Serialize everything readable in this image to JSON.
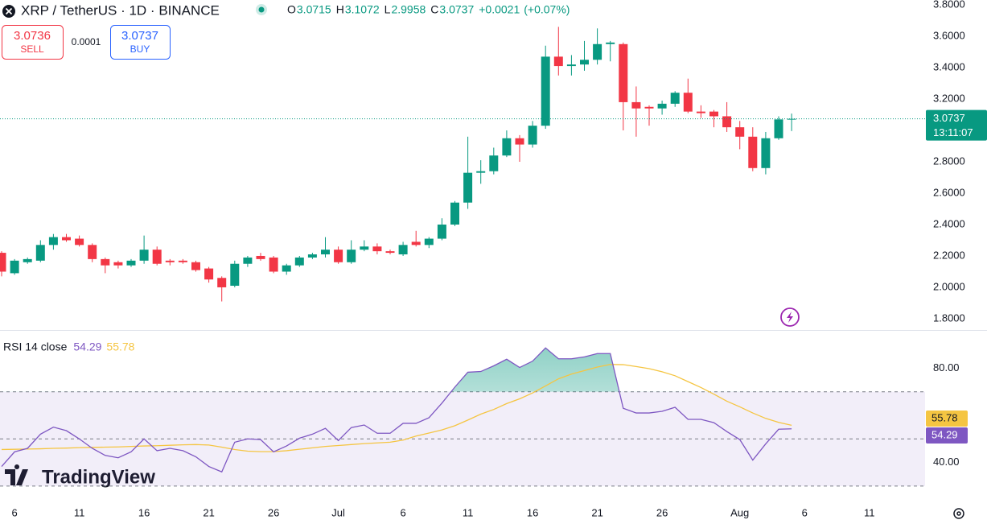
{
  "header": {
    "symbol": "XRP / TetherUS · 1D · BINANCE",
    "ohlc_labels": [
      "O",
      "H",
      "L",
      "C"
    ],
    "change": "+0.0021",
    "change_pct": "(+0.07%)"
  },
  "trade": {
    "sell_price": "3.0736",
    "sell": "SELL",
    "spread": "0.0001",
    "buy_price": "3.0737",
    "buy": "BUY"
  },
  "countdown": "13:11:07",
  "logo": "TradingView",
  "chart_data": [
    {
      "type": "candlestick",
      "categories": [
        null,
        "6",
        null,
        null,
        null,
        null,
        "11",
        null,
        null,
        null,
        null,
        "16",
        null,
        null,
        null,
        null,
        "21",
        null,
        null,
        null,
        null,
        "26",
        null,
        null,
        null,
        null,
        "Jul",
        null,
        null,
        null,
        null,
        "6",
        null,
        null,
        null,
        null,
        "11",
        null,
        null,
        null,
        null,
        "16",
        null,
        null,
        null,
        null,
        "21",
        null,
        null,
        null,
        null,
        "26",
        null,
        null,
        null,
        null,
        null,
        "Aug",
        null,
        null,
        null,
        null,
        "6",
        null,
        null,
        null,
        null,
        "11",
        null,
        null,
        null,
        null
      ],
      "open": [
        2.22,
        2.09,
        2.16,
        2.17,
        2.27,
        2.32,
        2.31,
        2.27,
        2.18,
        2.16,
        2.14,
        2.17,
        2.24,
        2.17,
        2.17,
        2.16,
        2.12,
        2.06,
        2.01,
        2.15,
        2.2,
        2.19,
        2.1,
        2.14,
        2.19,
        2.21,
        2.24,
        2.16,
        2.24,
        2.26,
        2.23,
        2.21,
        2.29,
        2.27,
        2.31,
        2.4,
        2.54,
        2.73,
        2.74,
        2.84,
        2.95,
        2.91,
        3.03,
        3.47,
        3.41,
        3.42,
        3.45,
        3.55,
        3.55,
        3.18,
        3.15,
        3.14,
        3.17,
        3.24,
        3.12,
        3.12,
        3.09,
        3.02,
        2.96,
        2.76,
        2.95,
        3.0715,
        null,
        null,
        null,
        null,
        null,
        null,
        null,
        null,
        null,
        null
      ],
      "high": [
        2.23,
        2.18,
        2.19,
        2.3,
        2.34,
        2.34,
        2.33,
        2.28,
        2.19,
        2.17,
        2.18,
        2.33,
        2.26,
        2.18,
        2.18,
        2.17,
        2.13,
        2.07,
        2.17,
        2.2,
        2.22,
        2.2,
        2.15,
        2.2,
        2.22,
        2.32,
        2.26,
        2.3,
        2.3,
        2.28,
        2.24,
        2.29,
        2.36,
        2.32,
        2.44,
        2.55,
        2.96,
        2.81,
        2.89,
        3.0,
        2.97,
        3.06,
        3.54,
        3.66,
        3.48,
        3.57,
        3.65,
        3.57,
        3.56,
        3.28,
        3.16,
        3.19,
        3.25,
        3.33,
        3.16,
        3.13,
        3.18,
        3.06,
        3.02,
        2.99,
        3.09,
        3.1072,
        null,
        null,
        null,
        null,
        null,
        null,
        null,
        null,
        null,
        null
      ],
      "low": [
        2.07,
        2.08,
        2.15,
        2.16,
        2.24,
        2.29,
        2.26,
        2.16,
        2.09,
        2.12,
        2.13,
        2.15,
        2.14,
        2.14,
        2.15,
        2.1,
        2.03,
        1.91,
        2.0,
        2.13,
        2.17,
        2.09,
        2.08,
        2.13,
        2.18,
        2.19,
        2.15,
        2.15,
        2.23,
        2.21,
        2.21,
        2.2,
        2.26,
        2.25,
        2.3,
        2.39,
        2.5,
        2.66,
        2.72,
        2.83,
        2.8,
        2.89,
        3.01,
        3.35,
        3.35,
        3.38,
        3.42,
        3.44,
        3.0,
        2.96,
        3.03,
        3.1,
        3.15,
        3.11,
        3.08,
        3.02,
        2.99,
        2.88,
        2.74,
        2.72,
        2.94,
        2.9958,
        null,
        null,
        null,
        null,
        null,
        null,
        null,
        null,
        null,
        null
      ],
      "close": [
        2.1,
        2.17,
        2.18,
        2.27,
        2.32,
        2.3,
        2.27,
        2.18,
        2.14,
        2.14,
        2.17,
        2.24,
        2.15,
        2.16,
        2.16,
        2.11,
        2.05,
        2.0,
        2.15,
        2.19,
        2.18,
        2.1,
        2.14,
        2.19,
        2.21,
        2.24,
        2.16,
        2.24,
        2.26,
        2.23,
        2.22,
        2.27,
        2.27,
        2.31,
        2.4,
        2.54,
        2.73,
        2.74,
        2.84,
        2.95,
        2.91,
        3.03,
        3.47,
        3.41,
        3.42,
        3.45,
        3.55,
        3.56,
        3.18,
        3.14,
        3.14,
        3.17,
        3.24,
        3.12,
        3.11,
        3.09,
        3.02,
        2.96,
        2.76,
        2.95,
        3.07,
        3.0737,
        null,
        null,
        null,
        null,
        null,
        null,
        null,
        null,
        null,
        null
      ],
      "up_color": "#089981",
      "down_color": "#f23645",
      "ylim": [
        1.728,
        3.831
      ],
      "yticks": [
        {
          "value": 1.8,
          "label": "1.8000"
        },
        {
          "value": 2.0,
          "label": "2.0000"
        },
        {
          "value": 2.2,
          "label": "2.2000"
        },
        {
          "value": 2.4,
          "label": "2.4000"
        },
        {
          "value": 2.6,
          "label": "2.6000"
        },
        {
          "value": 2.8,
          "label": "2.8000"
        },
        {
          "value": 3.0,
          "label": "3.0000"
        },
        {
          "value": 3.2,
          "label": "3.2000"
        },
        {
          "value": 3.4,
          "label": "3.4000"
        },
        {
          "value": 3.6,
          "label": "3.6000"
        },
        {
          "value": 3.8,
          "label": "3.8000"
        }
      ],
      "grid": false,
      "last_price_line": true
    },
    {
      "type": "line",
      "title": "RSI 14 close",
      "series": [
        {
          "color": "#7e57c2",
          "values": [
            38.3,
            44.5,
            46,
            52,
            55,
            53.5,
            50,
            46,
            43,
            42,
            44.5,
            50,
            45,
            46,
            45,
            42.4,
            38.3,
            36,
            48.6,
            50,
            49.7,
            44.5,
            47,
            50.3,
            52,
            54.5,
            49.3,
            54.8,
            55.9,
            52.4,
            52.4,
            56.6,
            56.6,
            59,
            65.2,
            72,
            78.3,
            78.6,
            81,
            83.8,
            80.3,
            83,
            88.6,
            84,
            84,
            84.8,
            86.2,
            86.2,
            63,
            61,
            61,
            61.7,
            63.4,
            58.3,
            58.3,
            56.9,
            53.1,
            49.7,
            41,
            47.9,
            54.1,
            54.29,
            null,
            null,
            null,
            null,
            null,
            null,
            null,
            null,
            null,
            null
          ]
        },
        {
          "color": "#f5c542",
          "values": [
            45.5,
            45.6,
            45.7,
            45.8,
            46,
            46.1,
            46.3,
            46.4,
            46.5,
            46.6,
            46.8,
            47,
            47.1,
            47.3,
            47.5,
            47.6,
            47.4,
            46.5,
            45.5,
            44.8,
            44.6,
            44.6,
            45,
            45.6,
            46.2,
            46.8,
            47.2,
            47.6,
            48,
            48.3,
            48.6,
            49.5,
            51.2,
            52.5,
            53.8,
            55.6,
            58,
            60.5,
            62.5,
            65,
            67,
            69.5,
            72.5,
            75.5,
            77.5,
            79,
            80.5,
            81.6,
            81.5,
            80.7,
            79.8,
            78.5,
            76.8,
            74.3,
            71.8,
            69,
            66,
            63.6,
            61,
            58.7,
            57,
            55.78,
            null,
            null,
            null,
            null,
            null,
            null,
            null,
            null,
            null,
            null
          ]
        }
      ],
      "ylim": [
        23.8,
        96.2
      ],
      "yticks": [
        {
          "value": 80,
          "label": "80.00"
        },
        {
          "value": 40,
          "label": "40.00"
        }
      ],
      "levels": [
        70,
        50,
        30
      ]
    }
  ]
}
